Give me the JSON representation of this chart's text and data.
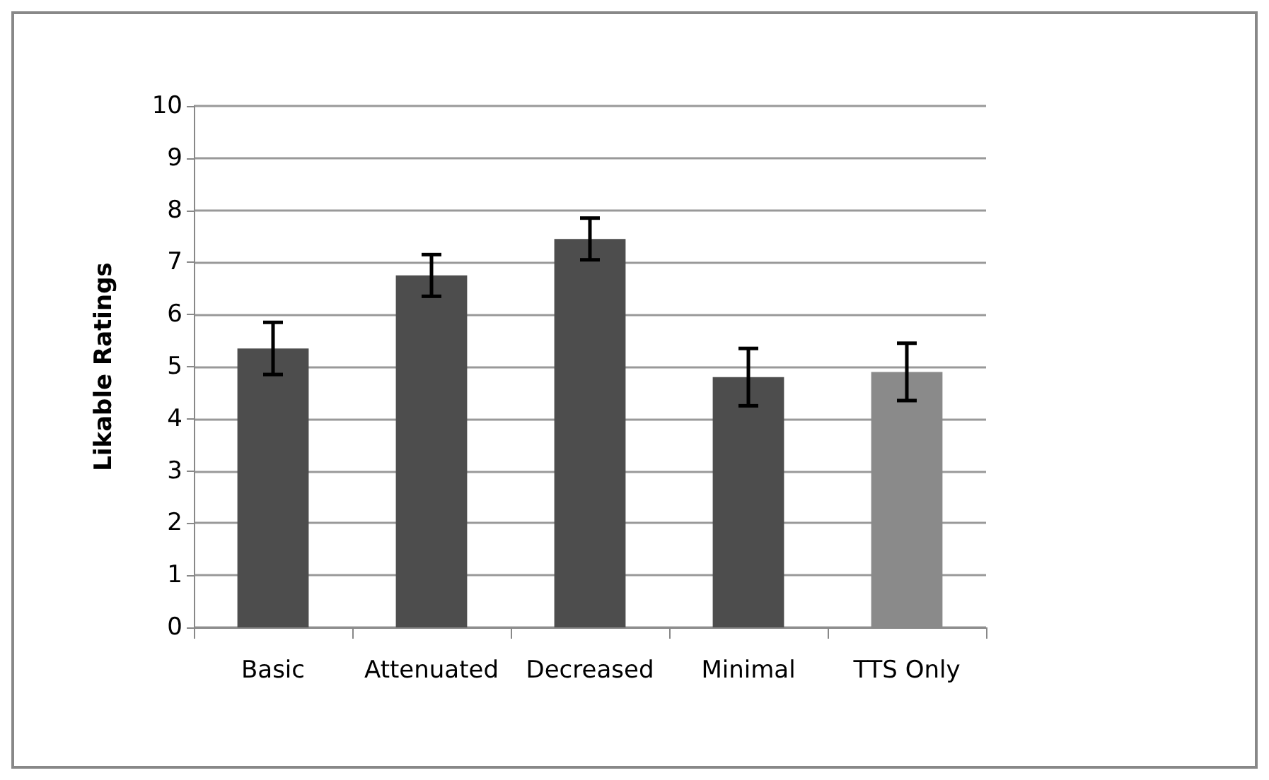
{
  "chart_data": {
    "type": "bar",
    "ylabel": "Likable Ratings",
    "categories": [
      "Basic",
      "Attenuated",
      "Decreased",
      "Minimal",
      "TTS Only"
    ],
    "values": [
      5.35,
      6.75,
      7.45,
      4.8,
      4.9
    ],
    "colors": [
      "#4d4d4d",
      "#4d4d4d",
      "#4d4d4d",
      "#4d4d4d",
      "#8a8a8a"
    ],
    "errors": [
      0.5,
      0.4,
      0.4,
      0.55,
      0.55
    ],
    "ylim": [
      0,
      10
    ],
    "yticks": [
      0,
      1,
      2,
      3,
      4,
      5,
      6,
      7,
      8,
      9,
      10
    ],
    "grid": "y"
  }
}
